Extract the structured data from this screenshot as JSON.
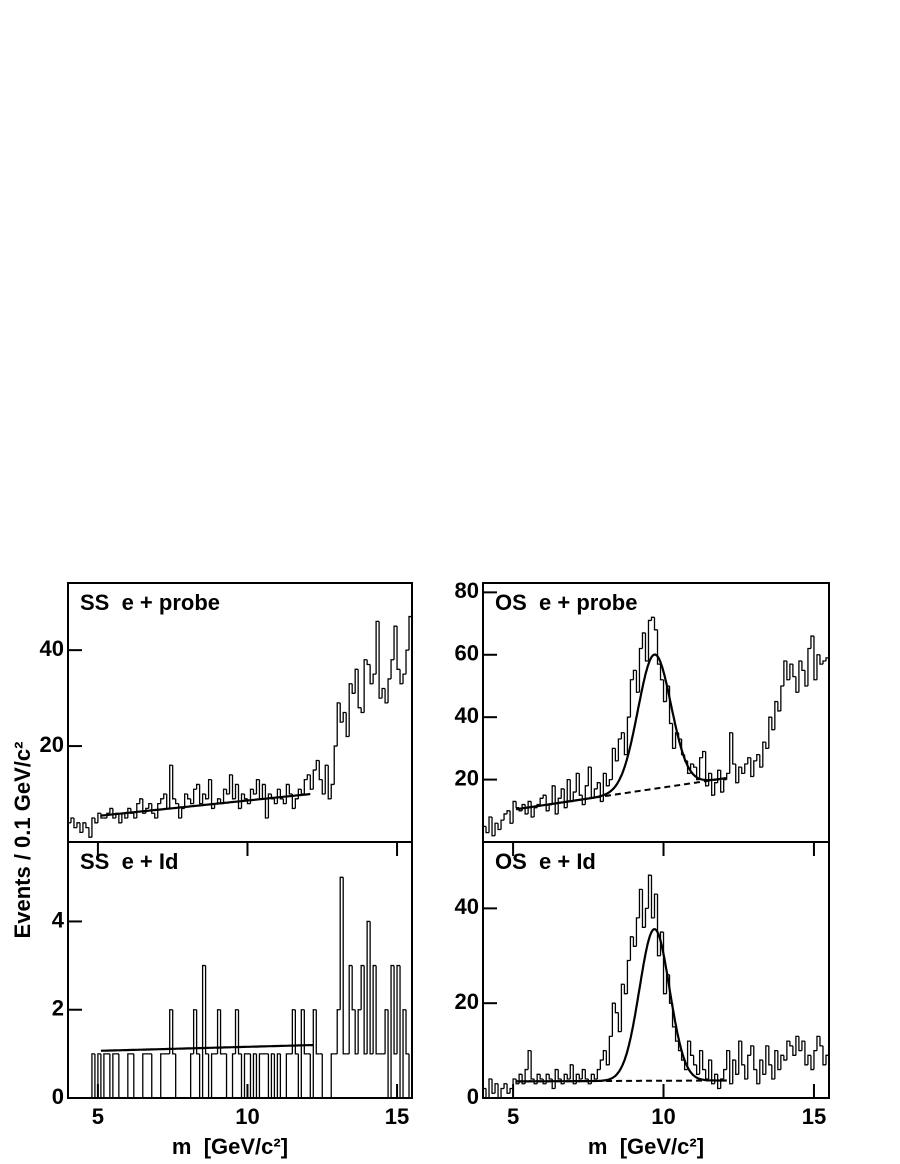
{
  "y_label": "Events / 0.1 GeV/c²",
  "chart_data": [
    {
      "type": "histogram",
      "label": "SS  e + probe",
      "bins": [
        4,
        4.1,
        4.2,
        4.3,
        4.4,
        4.5,
        4.6,
        4.7,
        4.8,
        4.9,
        5,
        5.1,
        5.2,
        5.3,
        5.4,
        5.5,
        5.6,
        5.7,
        5.8,
        5.9,
        6,
        6.1,
        6.2,
        6.3,
        6.4,
        6.5,
        6.6,
        6.7,
        6.8,
        6.9,
        7,
        7.1,
        7.2,
        7.3,
        7.4,
        7.5,
        7.6,
        7.7,
        7.8,
        7.9,
        8,
        8.1,
        8.2,
        8.3,
        8.4,
        8.5,
        8.6,
        8.7,
        8.8,
        8.9,
        9,
        9.1,
        9.2,
        9.3,
        9.4,
        9.5,
        9.6,
        9.7,
        9.8,
        9.9,
        10,
        10.1,
        10.2,
        10.3,
        10.4,
        10.5,
        10.6,
        10.7,
        10.8,
        10.9,
        11,
        11.1,
        11.2,
        11.3,
        11.4,
        11.5,
        11.6,
        11.7,
        11.8,
        11.9,
        12,
        12.1,
        12.2,
        12.3,
        12.4,
        12.5,
        12.6,
        12.7,
        12.8,
        12.9,
        13,
        13.1,
        13.2,
        13.3,
        13.4,
        13.5,
        13.6,
        13.7,
        13.8,
        13.9,
        14,
        14.1,
        14.2,
        14.3,
        14.4,
        14.5,
        14.6,
        14.7,
        14.8,
        14.9,
        15,
        15.1,
        15.2,
        15.3,
        15.4,
        15.5
      ],
      "values": [
        4,
        5,
        3,
        4,
        2,
        4,
        3,
        1,
        5,
        4,
        6,
        5,
        5,
        6,
        7,
        5,
        6,
        4,
        6,
        5,
        7,
        6,
        5,
        8,
        9,
        6,
        7,
        8,
        6,
        5,
        8,
        9,
        10,
        7,
        16,
        9,
        8,
        5,
        7,
        10,
        9,
        8,
        11,
        12,
        8,
        10,
        9,
        13,
        7,
        8,
        9,
        8,
        11,
        10,
        14,
        9,
        12,
        7,
        10,
        9,
        8,
        11,
        10,
        13,
        9,
        12,
        5,
        10,
        9,
        8,
        11,
        9,
        8,
        12,
        10,
        7,
        9,
        11,
        10,
        13,
        14,
        11,
        15,
        17,
        13,
        10,
        16,
        9,
        12,
        20,
        29,
        25,
        27,
        22,
        33,
        31,
        36,
        28,
        27,
        38,
        37,
        33,
        35,
        46,
        30,
        32,
        29,
        34,
        38,
        45,
        36,
        33,
        35,
        40,
        47
      ],
      "xlim": [
        4,
        15.5
      ],
      "ylim": [
        0,
        54
      ],
      "yticks": [
        20,
        40
      ],
      "fit": {
        "xlim": [
          5.1,
          12.1
        ],
        "background": [
          5.5,
          10
        ]
      }
    },
    {
      "type": "histogram",
      "label": "OS  e + probe",
      "bins": [
        4,
        4.1,
        4.2,
        4.3,
        4.4,
        4.5,
        4.6,
        4.7,
        4.8,
        4.9,
        5,
        5.1,
        5.2,
        5.3,
        5.4,
        5.5,
        5.6,
        5.7,
        5.8,
        5.9,
        6,
        6.1,
        6.2,
        6.3,
        6.4,
        6.5,
        6.6,
        6.7,
        6.8,
        6.9,
        7,
        7.1,
        7.2,
        7.3,
        7.4,
        7.5,
        7.6,
        7.7,
        7.8,
        7.9,
        8,
        8.1,
        8.2,
        8.3,
        8.4,
        8.5,
        8.6,
        8.7,
        8.8,
        8.9,
        9,
        9.1,
        9.2,
        9.3,
        9.4,
        9.5,
        9.6,
        9.7,
        9.8,
        9.9,
        10,
        10.1,
        10.2,
        10.3,
        10.4,
        10.5,
        10.6,
        10.7,
        10.8,
        10.9,
        11,
        11.1,
        11.2,
        11.3,
        11.4,
        11.5,
        11.6,
        11.7,
        11.8,
        11.9,
        12,
        12.1,
        12.2,
        12.3,
        12.4,
        12.5,
        12.6,
        12.7,
        12.8,
        12.9,
        13,
        13.1,
        13.2,
        13.3,
        13.4,
        13.5,
        13.6,
        13.7,
        13.8,
        13.9,
        14,
        14.1,
        14.2,
        14.3,
        14.4,
        14.5,
        14.6,
        14.7,
        14.8,
        14.9,
        15,
        15.1,
        15.2,
        15.3,
        15.4,
        15.5
      ],
      "values": [
        5,
        3,
        8,
        2,
        6,
        4,
        7,
        9,
        10,
        6,
        13,
        11,
        10,
        12,
        9,
        13,
        8,
        11,
        12,
        14,
        15,
        10,
        12,
        18,
        9,
        14,
        17,
        11,
        20,
        13,
        16,
        22,
        15,
        12,
        18,
        24,
        14,
        17,
        19,
        13,
        22,
        18,
        20,
        30,
        26,
        33,
        35,
        28,
        40,
        52,
        55,
        48,
        62,
        67,
        58,
        71,
        72,
        68,
        57,
        52,
        45,
        50,
        38,
        30,
        35,
        33,
        28,
        26,
        22,
        25,
        24,
        20,
        27,
        29,
        18,
        22,
        15,
        19,
        23,
        16,
        20,
        22,
        35,
        25,
        19,
        24,
        22,
        25,
        27,
        21,
        26,
        28,
        24,
        32,
        30,
        40,
        36,
        45,
        42,
        50,
        58,
        52,
        57,
        53,
        48,
        58,
        55,
        50,
        62,
        66,
        52,
        60,
        57,
        58,
        59
      ],
      "xlim": [
        4,
        15.5
      ],
      "ylim": [
        0,
        83
      ],
      "yticks": [
        20,
        40,
        60,
        80
      ],
      "fit": {
        "xlim": [
          5.1,
          12.1
        ],
        "background": [
          10.5,
          20.5
        ],
        "gaussian": {
          "amplitude": 43,
          "mean": 9.7,
          "sigma": 0.55
        }
      }
    },
    {
      "type": "histogram",
      "label": "SS  e + Id",
      "x_label": "m  [GeV/c²]",
      "bins": [
        4,
        4.1,
        4.2,
        4.3,
        4.4,
        4.5,
        4.6,
        4.7,
        4.8,
        4.9,
        5,
        5.1,
        5.2,
        5.3,
        5.4,
        5.5,
        5.6,
        5.7,
        5.8,
        5.9,
        6,
        6.1,
        6.2,
        6.3,
        6.4,
        6.5,
        6.6,
        6.7,
        6.8,
        6.9,
        7,
        7.1,
        7.2,
        7.3,
        7.4,
        7.5,
        7.6,
        7.7,
        7.8,
        7.9,
        8,
        8.1,
        8.2,
        8.3,
        8.4,
        8.5,
        8.6,
        8.7,
        8.8,
        8.9,
        9,
        9.1,
        9.2,
        9.3,
        9.4,
        9.5,
        9.6,
        9.7,
        9.8,
        9.9,
        10,
        10.1,
        10.2,
        10.3,
        10.4,
        10.5,
        10.6,
        10.7,
        10.8,
        10.9,
        11,
        11.1,
        11.2,
        11.3,
        11.4,
        11.5,
        11.6,
        11.7,
        11.8,
        11.9,
        12,
        12.1,
        12.2,
        12.3,
        12.4,
        12.5,
        12.6,
        12.7,
        12.8,
        12.9,
        13,
        13.1,
        13.2,
        13.3,
        13.4,
        13.5,
        13.6,
        13.7,
        13.8,
        13.9,
        14,
        14.1,
        14.2,
        14.3,
        14.4,
        14.5,
        14.6,
        14.7,
        14.8,
        14.9,
        15,
        15.1,
        15.2,
        15.3,
        15.4,
        15.5
      ],
      "values": [
        0,
        0,
        0,
        0,
        0,
        0,
        0,
        0,
        1,
        0,
        1,
        0,
        1,
        1,
        0,
        1,
        1,
        0,
        0,
        0,
        1,
        1,
        0,
        0,
        0,
        1,
        1,
        1,
        0,
        0,
        0,
        1,
        1,
        1,
        2,
        1,
        0,
        0,
        0,
        0,
        0,
        1,
        2,
        1,
        0,
        3,
        1,
        0,
        1,
        1,
        2,
        1,
        1,
        0,
        0,
        1,
        2,
        1,
        0,
        1,
        1,
        0,
        1,
        0,
        1,
        1,
        1,
        0,
        1,
        0,
        1,
        0,
        0,
        1,
        1,
        2,
        1,
        0,
        2,
        1,
        1,
        0,
        2,
        1,
        1,
        0,
        0,
        0,
        1,
        1,
        2,
        5,
        1,
        1,
        3,
        2,
        1,
        2,
        3,
        1,
        4,
        1,
        3,
        1,
        1,
        1,
        2,
        0,
        3,
        1,
        3,
        0,
        2,
        1,
        0
      ],
      "xlim": [
        4,
        15.5
      ],
      "ylim": [
        0,
        5.8
      ],
      "yticks": [
        0,
        2,
        4
      ],
      "xticks": [
        5,
        10,
        15
      ],
      "fit": {
        "xlim": [
          5.1,
          12.2
        ],
        "background": [
          1.07,
          1.2
        ]
      }
    },
    {
      "type": "histogram",
      "label": "OS  e + Id",
      "x_label": "m  [GeV/c²]",
      "bins": [
        4,
        4.1,
        4.2,
        4.3,
        4.4,
        4.5,
        4.6,
        4.7,
        4.8,
        4.9,
        5,
        5.1,
        5.2,
        5.3,
        5.4,
        5.5,
        5.6,
        5.7,
        5.8,
        5.9,
        6,
        6.1,
        6.2,
        6.3,
        6.4,
        6.5,
        6.6,
        6.7,
        6.8,
        6.9,
        7,
        7.1,
        7.2,
        7.3,
        7.4,
        7.5,
        7.6,
        7.7,
        7.8,
        7.9,
        8,
        8.1,
        8.2,
        8.3,
        8.4,
        8.5,
        8.6,
        8.7,
        8.8,
        8.9,
        9,
        9.1,
        9.2,
        9.3,
        9.4,
        9.5,
        9.6,
        9.7,
        9.8,
        9.9,
        10,
        10.1,
        10.2,
        10.3,
        10.4,
        10.5,
        10.6,
        10.7,
        10.8,
        10.9,
        11,
        11.1,
        11.2,
        11.3,
        11.4,
        11.5,
        11.6,
        11.7,
        11.8,
        11.9,
        12,
        12.1,
        12.2,
        12.3,
        12.4,
        12.5,
        12.6,
        12.7,
        12.8,
        12.9,
        13,
        13.1,
        13.2,
        13.3,
        13.4,
        13.5,
        13.6,
        13.7,
        13.8,
        13.9,
        14,
        14.1,
        14.2,
        14.3,
        14.4,
        14.5,
        14.6,
        14.7,
        14.8,
        14.9,
        15,
        15.1,
        15.2,
        15.3,
        15.4,
        15.5
      ],
      "values": [
        2,
        0,
        4,
        1,
        3,
        0,
        2,
        3,
        1,
        2,
        4,
        3,
        5,
        3,
        6,
        10,
        4,
        3,
        5,
        4,
        3,
        5,
        4,
        2,
        6,
        4,
        3,
        5,
        4,
        7,
        3,
        5,
        4,
        6,
        4,
        3,
        5,
        4,
        6,
        8,
        10,
        7,
        13,
        20,
        18,
        14,
        24,
        22,
        29,
        34,
        32,
        38,
        44,
        36,
        40,
        47,
        38,
        43,
        30,
        35,
        22,
        26,
        20,
        15,
        12,
        10,
        8,
        6,
        12,
        9,
        7,
        5,
        10,
        6,
        4,
        8,
        3,
        5,
        2,
        4,
        6,
        10,
        3,
        8,
        5,
        12,
        7,
        4,
        9,
        11,
        6,
        3,
        8,
        5,
        11,
        7,
        4,
        10,
        6,
        9,
        8,
        12,
        11,
        9,
        13,
        10,
        12,
        7,
        9,
        6,
        10,
        13,
        11,
        7,
        9
      ],
      "xlim": [
        4,
        15.5
      ],
      "ylim": [
        0,
        54
      ],
      "yticks": [
        0,
        20,
        40
      ],
      "xticks": [
        5,
        10,
        15
      ],
      "fit": {
        "xlim": [
          5.1,
          12.1
        ],
        "background": [
          3.5,
          3.7
        ],
        "gaussian": {
          "amplitude": 32,
          "mean": 9.7,
          "sigma": 0.5
        }
      }
    }
  ]
}
